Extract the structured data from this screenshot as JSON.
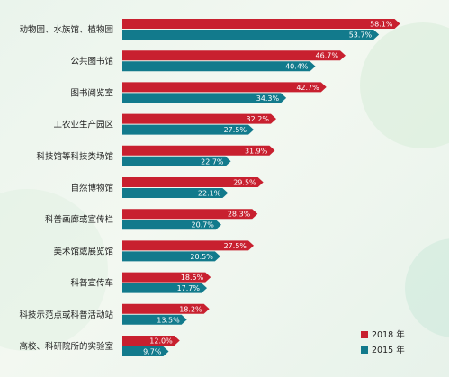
{
  "chart_data": {
    "type": "bar",
    "orientation": "horizontal",
    "categories": [
      "动物园、水族馆、植物园",
      "公共图书馆",
      "图书阅览室",
      "工农业生产园区",
      "科技馆等科技类场馆",
      "自然博物馆",
      "科普画廊或宣传栏",
      "美术馆或展览馆",
      "科普宣传车",
      "科技示范点或科普活动站",
      "高校、科研院所的实验室"
    ],
    "series": [
      {
        "name": "2018 年",
        "color": "#c8202f",
        "values": [
          58.1,
          46.7,
          42.7,
          32.2,
          31.9,
          29.5,
          28.3,
          27.5,
          18.5,
          18.2,
          12.0
        ],
        "labels": [
          "58.1%",
          "46.7%",
          "42.7%",
          "32.2%",
          "31.9%",
          "29.5%",
          "28.3%",
          "27.5%",
          "18.5%",
          "18.2%",
          "12.0%"
        ]
      },
      {
        "name": "2015 年",
        "color": "#127a8c",
        "values": [
          53.7,
          40.4,
          34.3,
          27.5,
          22.7,
          22.1,
          20.7,
          20.5,
          17.7,
          13.5,
          9.7
        ],
        "labels": [
          "53.7%",
          "40.4%",
          "34.3%",
          "27.5%",
          "22.7%",
          "22.1%",
          "20.7%",
          "20.5%",
          "17.7%",
          "13.5%",
          "9.7%"
        ]
      }
    ],
    "unit": "%",
    "grid": false,
    "legend": "bottom-right"
  }
}
